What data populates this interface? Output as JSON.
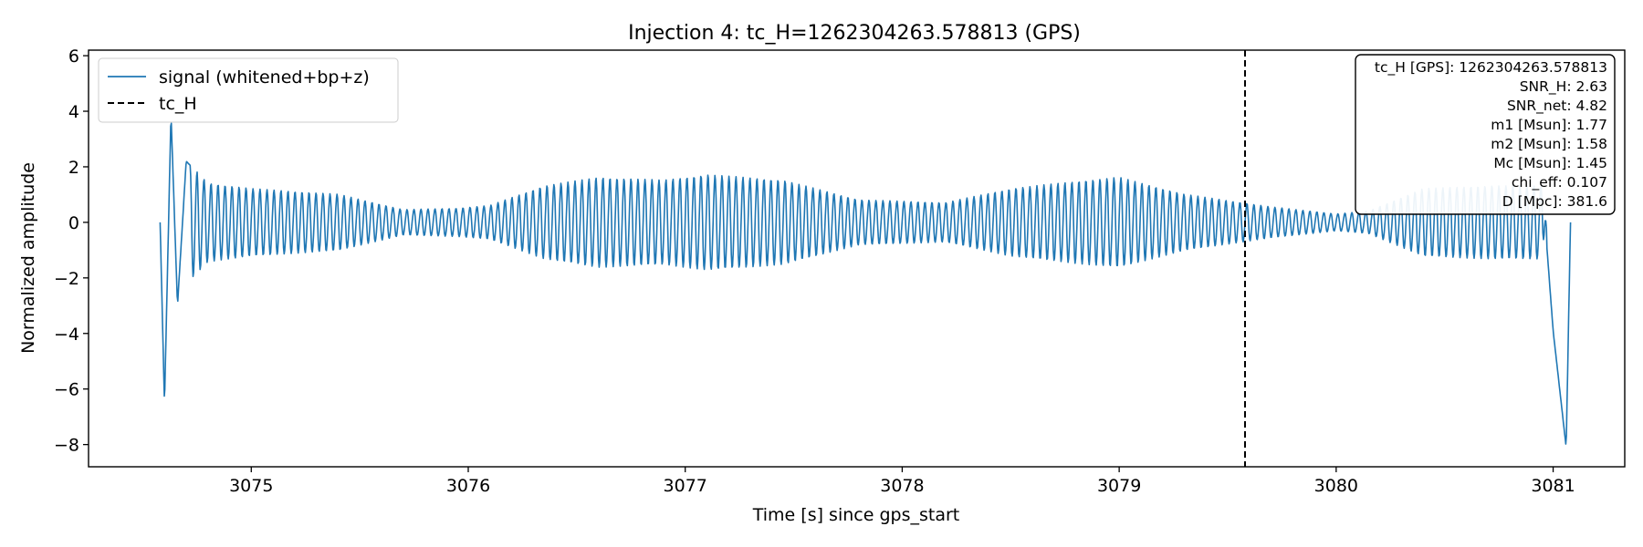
{
  "chart_data": {
    "type": "line",
    "title": "Injection 4: tc_H=1262304263.578813 (GPS)",
    "xlabel": "Time [s] since gps_start",
    "ylabel": "Normalized amplitude",
    "xlim": [
      3074.25,
      3081.33
    ],
    "ylim": [
      -8.8,
      6.2
    ],
    "x_ticks": [
      3075,
      3076,
      3077,
      3078,
      3079,
      3080,
      3081
    ],
    "x_tick_labels": [
      "3075",
      "3076",
      "3077",
      "3078",
      "3079",
      "3080",
      "3081"
    ],
    "y_ticks": [
      6,
      4,
      2,
      0,
      -2,
      -4,
      -6,
      -8
    ],
    "y_tick_labels": [
      "6",
      "4",
      "2",
      "0",
      "−2",
      "−4",
      "−6",
      "−8"
    ],
    "series": [
      {
        "name": "signal (whitened+bp+z)",
        "color": "#1f77b4",
        "style": "solid",
        "x_start": 3074.58,
        "x_end": 3081.08,
        "approx_frequency_hz": 31,
        "envelope_anchor_points": [
          [
            3074.58,
            0.0
          ],
          [
            3074.6,
            -6.6
          ],
          [
            3074.63,
            3.9
          ],
          [
            3074.66,
            -3.0
          ],
          [
            3074.7,
            2.2
          ],
          [
            3074.8,
            1.4
          ],
          [
            3075.0,
            1.2
          ],
          [
            3075.4,
            1.0
          ],
          [
            3075.7,
            0.45
          ],
          [
            3075.95,
            0.5
          ],
          [
            3076.1,
            0.6
          ],
          [
            3076.35,
            1.3
          ],
          [
            3076.6,
            1.6
          ],
          [
            3076.9,
            1.5
          ],
          [
            3077.1,
            1.7
          ],
          [
            3077.45,
            1.5
          ],
          [
            3077.8,
            0.8
          ],
          [
            3078.2,
            0.7
          ],
          [
            3078.5,
            1.2
          ],
          [
            3078.85,
            1.5
          ],
          [
            3079.0,
            1.6
          ],
          [
            3079.3,
            1.0
          ],
          [
            3079.7,
            0.55
          ],
          [
            3080.0,
            0.3
          ],
          [
            3080.15,
            0.4
          ],
          [
            3080.4,
            1.2
          ],
          [
            3080.7,
            1.3
          ],
          [
            3080.95,
            1.3
          ],
          [
            3081.0,
            -3.9
          ],
          [
            3081.06,
            -8.1
          ],
          [
            3081.08,
            0.0
          ]
        ]
      },
      {
        "name": "tc_H",
        "color": "#000000",
        "style": "dashed",
        "x": 3079.58
      }
    ],
    "legend": {
      "location": "upper-left",
      "entries": [
        "signal (whitened+bp+z)",
        "tc_H"
      ]
    },
    "annotation_box": {
      "location": "upper-right",
      "lines": [
        "tc_H [GPS]: 1262304263.578813",
        "SNR_H: 2.63",
        "SNR_net: 4.82",
        "m1 [Msun]: 1.77",
        "m2 [Msun]: 1.58",
        "Mc [Msun]: 1.45",
        "chi_eff: 0.107",
        "D [Mpc]: 381.6"
      ]
    },
    "grid": false
  }
}
